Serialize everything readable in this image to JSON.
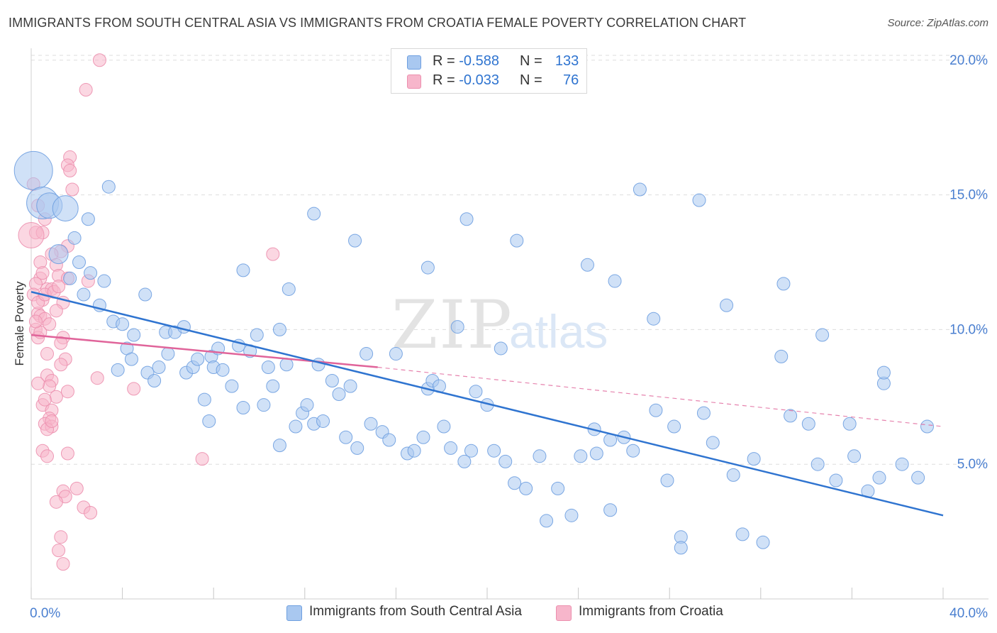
{
  "title": "IMMIGRANTS FROM SOUTH CENTRAL ASIA VS IMMIGRANTS FROM CROATIA FEMALE POVERTY CORRELATION CHART",
  "source": "Source: ZipAtlas.com",
  "colors": {
    "blue_fill": "#a9c8f0",
    "blue_stroke": "#6e9fe0",
    "blue_line": "#2f74d0",
    "pink_fill": "#f7b6cb",
    "pink_stroke": "#ec8fae",
    "pink_line": "#e0649a",
    "tick_label": "#4a7fd0",
    "grid": "#dddddd"
  },
  "legend": {
    "r_label": "R =",
    "n_label": "N =",
    "series": [
      {
        "r": "-0.588",
        "n": "133"
      },
      {
        "r": "-0.033",
        "n": "76"
      }
    ]
  },
  "chart_data": {
    "type": "scatter",
    "title": "IMMIGRANTS FROM SOUTH CENTRAL ASIA VS IMMIGRANTS FROM CROATIA FEMALE POVERTY CORRELATION CHART",
    "xlabel": "",
    "ylabel": "Female Poverty",
    "xlim": [
      0,
      40
    ],
    "ylim": [
      0,
      20.6
    ],
    "x_tick_labels": [
      "0.0%",
      "40.0%"
    ],
    "y_ticks": [
      5,
      10,
      15,
      20
    ],
    "y_tick_labels": [
      "5.0%",
      "10.0%",
      "15.0%",
      "20.0%"
    ],
    "grid": "horizontal dashed",
    "legend_position": "top-center",
    "watermark": "ZIPatlas",
    "series": [
      {
        "name": "Immigrants from South Central Asia",
        "trend": {
          "x": [
            0,
            40
          ],
          "y": [
            11.4,
            3.1
          ]
        },
        "points": [
          [
            0.1,
            15.9,
            3
          ],
          [
            0.5,
            14.7,
            2.5
          ],
          [
            0.8,
            14.6,
            2
          ],
          [
            1.5,
            14.5,
            2
          ],
          [
            1.2,
            12.8,
            1.5
          ],
          [
            1.9,
            13.4,
            1
          ],
          [
            2.1,
            12.5,
            1
          ],
          [
            2.6,
            12.1,
            1
          ],
          [
            3.4,
            15.3,
            1
          ],
          [
            2.5,
            14.1,
            1
          ],
          [
            1.7,
            11.9,
            1
          ],
          [
            2.3,
            11.3,
            1
          ],
          [
            3.2,
            11.8,
            1
          ],
          [
            3.0,
            10.9,
            1
          ],
          [
            3.6,
            10.3,
            1
          ],
          [
            4.0,
            10.2,
            1
          ],
          [
            4.5,
            9.8,
            1
          ],
          [
            5.0,
            11.3,
            1
          ],
          [
            4.2,
            9.3,
            1
          ],
          [
            4.4,
            8.9,
            1
          ],
          [
            3.8,
            8.5,
            1
          ],
          [
            5.1,
            8.4,
            1
          ],
          [
            5.6,
            8.6,
            1
          ],
          [
            5.4,
            8.1,
            1
          ],
          [
            5.9,
            9.9,
            1
          ],
          [
            6.0,
            9.1,
            1
          ],
          [
            6.3,
            9.9,
            1
          ],
          [
            6.7,
            10.1,
            1
          ],
          [
            6.8,
            8.4,
            1
          ],
          [
            7.1,
            8.6,
            1
          ],
          [
            7.3,
            8.9,
            1
          ],
          [
            7.6,
            7.4,
            1
          ],
          [
            7.8,
            6.6,
            1
          ],
          [
            7.9,
            9.0,
            1
          ],
          [
            8.0,
            8.6,
            1
          ],
          [
            8.4,
            8.5,
            1
          ],
          [
            8.2,
            9.3,
            1
          ],
          [
            8.8,
            7.9,
            1
          ],
          [
            9.1,
            9.4,
            1
          ],
          [
            9.3,
            7.1,
            1
          ],
          [
            9.6,
            9.2,
            1
          ],
          [
            9.9,
            9.8,
            1
          ],
          [
            10.2,
            7.2,
            1
          ],
          [
            10.4,
            8.6,
            1
          ],
          [
            10.6,
            7.9,
            1
          ],
          [
            11.2,
            8.7,
            1
          ],
          [
            10.9,
            5.7,
            1
          ],
          [
            11.6,
            6.4,
            1
          ],
          [
            11.9,
            6.9,
            1
          ],
          [
            12.1,
            7.2,
            1
          ],
          [
            12.4,
            6.5,
            1
          ],
          [
            12.8,
            6.6,
            1
          ],
          [
            12.6,
            8.7,
            1
          ],
          [
            13.2,
            8.1,
            1
          ],
          [
            13.5,
            7.6,
            1
          ],
          [
            13.8,
            6.0,
            1
          ],
          [
            14.0,
            7.9,
            1
          ],
          [
            14.3,
            5.6,
            1
          ],
          [
            14.7,
            9.1,
            1
          ],
          [
            14.9,
            6.5,
            1
          ],
          [
            15.4,
            6.2,
            1
          ],
          [
            15.7,
            5.9,
            1
          ],
          [
            16.0,
            9.1,
            1
          ],
          [
            16.5,
            5.4,
            1
          ],
          [
            16.8,
            5.5,
            1
          ],
          [
            17.2,
            6.0,
            1
          ],
          [
            17.4,
            7.8,
            1
          ],
          [
            17.6,
            8.1,
            1
          ],
          [
            17.9,
            7.9,
            1
          ],
          [
            18.1,
            6.4,
            1
          ],
          [
            18.4,
            5.6,
            1
          ],
          [
            18.7,
            10.1,
            1
          ],
          [
            19.0,
            5.1,
            1
          ],
          [
            19.3,
            5.5,
            1
          ],
          [
            19.5,
            7.7,
            1
          ],
          [
            20.0,
            7.2,
            1
          ],
          [
            20.3,
            5.5,
            1
          ],
          [
            20.8,
            5.1,
            1
          ],
          [
            21.2,
            4.3,
            1
          ],
          [
            21.7,
            4.1,
            1
          ],
          [
            22.3,
            5.3,
            1
          ],
          [
            22.6,
            2.9,
            1
          ],
          [
            23.1,
            4.1,
            1
          ],
          [
            24.1,
            5.3,
            1
          ],
          [
            24.8,
            5.4,
            1
          ],
          [
            24.7,
            6.3,
            1
          ],
          [
            25.4,
            5.9,
            1
          ],
          [
            26.0,
            6.0,
            1
          ],
          [
            26.4,
            5.5,
            1
          ],
          [
            27.4,
            7.0,
            1
          ],
          [
            28.2,
            6.4,
            1
          ],
          [
            29.5,
            6.9,
            1
          ],
          [
            29.9,
            5.8,
            1
          ],
          [
            31.2,
            2.4,
            1
          ],
          [
            30.8,
            4.6,
            1
          ],
          [
            31.7,
            5.2,
            1
          ],
          [
            32.9,
            9.0,
            1
          ],
          [
            33.3,
            6.8,
            1
          ],
          [
            34.1,
            6.5,
            1
          ],
          [
            35.3,
            4.4,
            1
          ],
          [
            36.1,
            5.3,
            1
          ],
          [
            37.4,
            8.0,
            1
          ],
          [
            38.2,
            5.0,
            1
          ],
          [
            39.3,
            6.4,
            1
          ],
          [
            25.6,
            11.8,
            1
          ],
          [
            21.3,
            13.3,
            1
          ],
          [
            19.1,
            14.1,
            1
          ],
          [
            26.7,
            15.2,
            1
          ],
          [
            24.4,
            12.4,
            1
          ],
          [
            27.3,
            10.4,
            1
          ],
          [
            29.3,
            14.8,
            1
          ],
          [
            30.5,
            10.9,
            1
          ],
          [
            33.0,
            11.7,
            1
          ],
          [
            34.7,
            9.8,
            1
          ],
          [
            37.4,
            8.4,
            1
          ],
          [
            35.9,
            6.5,
            1
          ],
          [
            38.9,
            4.5,
            1
          ],
          [
            37.2,
            4.5,
            1
          ],
          [
            36.7,
            4.0,
            1
          ],
          [
            34.5,
            5.0,
            1
          ],
          [
            32.1,
            2.1,
            1
          ],
          [
            28.5,
            2.3,
            1
          ],
          [
            25.4,
            3.3,
            1
          ],
          [
            23.7,
            3.1,
            1
          ],
          [
            20.6,
            9.3,
            1
          ],
          [
            17.4,
            12.3,
            1
          ],
          [
            14.2,
            13.3,
            1
          ],
          [
            12.4,
            14.3,
            1
          ],
          [
            11.3,
            11.5,
            1
          ],
          [
            10.9,
            10.0,
            1
          ],
          [
            9.3,
            12.2,
            1
          ],
          [
            27.9,
            4.4,
            1
          ],
          [
            28.5,
            1.9,
            1
          ]
        ]
      },
      {
        "name": "Immigrants from Croatia",
        "trend": {
          "x": [
            0,
            15.2
          ],
          "y": [
            9.8,
            8.6
          ]
        },
        "trend_extension": {
          "x": [
            15.2,
            40
          ],
          "y": [
            8.6,
            6.4
          ]
        },
        "points": [
          [
            3.0,
            20.0,
            1
          ],
          [
            2.4,
            18.9,
            1
          ],
          [
            1.7,
            16.4,
            1
          ],
          [
            1.6,
            16.1,
            1
          ],
          [
            1.7,
            15.9,
            1
          ],
          [
            0.1,
            15.4,
            1
          ],
          [
            1.8,
            15.2,
            1
          ],
          [
            0.3,
            14.6,
            1
          ],
          [
            0.6,
            14.1,
            1
          ],
          [
            0.2,
            13.6,
            1
          ],
          [
            0.5,
            13.6,
            1
          ],
          [
            0.0,
            13.5,
            2
          ],
          [
            1.6,
            13.1,
            1
          ],
          [
            1.3,
            12.9,
            1
          ],
          [
            0.9,
            12.8,
            1
          ],
          [
            0.4,
            12.5,
            1
          ],
          [
            1.1,
            12.4,
            1
          ],
          [
            1.2,
            12.0,
            1
          ],
          [
            0.4,
            11.9,
            1
          ],
          [
            1.6,
            11.9,
            1
          ],
          [
            2.5,
            11.8,
            1
          ],
          [
            0.2,
            11.7,
            1
          ],
          [
            0.7,
            11.5,
            1
          ],
          [
            0.9,
            11.5,
            1
          ],
          [
            0.1,
            11.3,
            1
          ],
          [
            0.5,
            11.1,
            1
          ],
          [
            1.4,
            11.0,
            1
          ],
          [
            0.3,
            10.6,
            1
          ],
          [
            1.1,
            10.7,
            1
          ],
          [
            0.4,
            10.5,
            1
          ],
          [
            0.6,
            10.4,
            1
          ],
          [
            0.2,
            10.0,
            1
          ],
          [
            0.3,
            9.7,
            1
          ],
          [
            1.4,
            9.7,
            1
          ],
          [
            1.3,
            9.5,
            1
          ],
          [
            0.7,
            9.1,
            1
          ],
          [
            1.5,
            8.9,
            1
          ],
          [
            0.7,
            8.3,
            1
          ],
          [
            0.9,
            8.1,
            1
          ],
          [
            0.8,
            7.9,
            1
          ],
          [
            2.9,
            8.2,
            1
          ],
          [
            4.5,
            7.8,
            1
          ],
          [
            1.6,
            7.7,
            1
          ],
          [
            1.1,
            7.5,
            1
          ],
          [
            0.5,
            7.2,
            1
          ],
          [
            0.9,
            7.0,
            1
          ],
          [
            0.8,
            6.7,
            1
          ],
          [
            0.6,
            6.5,
            1
          ],
          [
            0.9,
            6.4,
            1
          ],
          [
            0.7,
            6.3,
            1
          ],
          [
            0.5,
            5.5,
            1
          ],
          [
            1.6,
            5.4,
            1
          ],
          [
            0.7,
            5.3,
            1
          ],
          [
            7.5,
            5.2,
            1
          ],
          [
            1.4,
            4.0,
            1
          ],
          [
            2.0,
            4.1,
            1
          ],
          [
            1.5,
            3.8,
            1
          ],
          [
            1.1,
            3.6,
            1
          ],
          [
            2.3,
            3.4,
            1
          ],
          [
            2.6,
            3.2,
            1
          ],
          [
            1.3,
            2.3,
            1
          ],
          [
            1.2,
            1.8,
            1
          ],
          [
            1.4,
            1.3,
            1
          ],
          [
            10.6,
            12.8,
            1
          ],
          [
            0.3,
            11.0,
            1
          ],
          [
            0.6,
            11.3,
            1
          ],
          [
            0.8,
            10.2,
            1
          ],
          [
            0.4,
            9.9,
            1
          ],
          [
            0.2,
            10.3,
            1
          ],
          [
            1.0,
            11.4,
            1
          ],
          [
            0.5,
            12.1,
            1
          ],
          [
            1.2,
            11.6,
            1
          ],
          [
            0.9,
            6.6,
            1
          ],
          [
            0.6,
            7.4,
            1
          ],
          [
            1.3,
            8.7,
            1
          ],
          [
            0.3,
            8.0,
            1
          ]
        ]
      }
    ]
  },
  "bottom_legend": [
    {
      "label": "Immigrants from South Central Asia"
    },
    {
      "label": "Immigrants from Croatia"
    }
  ]
}
